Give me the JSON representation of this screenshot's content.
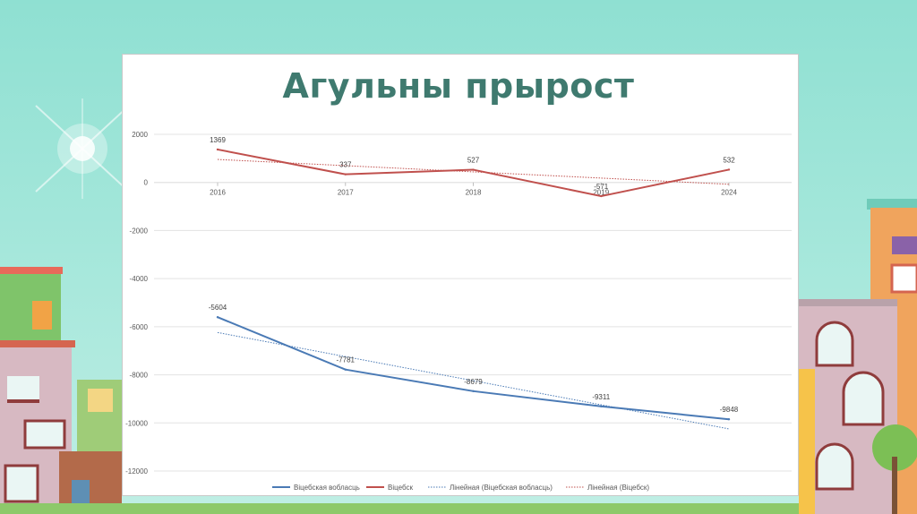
{
  "slide": {
    "title": "Агульны прырост"
  },
  "colors": {
    "sky": "#8fe0d2",
    "title": "#3f7a6f",
    "vitebsk_region": "#4a7ab5",
    "vitebsk": "#c0504d",
    "grid": "#e3e3e3"
  },
  "chart_data": {
    "type": "line",
    "title": "",
    "xlabel": "",
    "ylabel": "",
    "categories": [
      "2016",
      "2017",
      "2018",
      "2019",
      "2024"
    ],
    "ylim": [
      -12000,
      2000
    ],
    "yticks": [
      2000,
      0,
      -2000,
      -4000,
      -6000,
      -8000,
      -10000,
      -12000
    ],
    "grid": true,
    "legend_position": "bottom",
    "series": [
      {
        "name": "Віцебская вобласць",
        "values": [
          -5604,
          -7781,
          -8679,
          -9311,
          -9848
        ],
        "color": "#4a7ab5"
      },
      {
        "name": "Віцебск",
        "values": [
          1369,
          337,
          527,
          -571,
          532
        ],
        "color": "#c0504d"
      }
    ],
    "trendlines": [
      {
        "name": "Лінейная (Віцебская вобласць)",
        "of": "Віцебская вобласць",
        "style": "dotted",
        "color": "#4a7ab5"
      },
      {
        "name": "Лінейная (Віцебск)",
        "of": "Віцебск",
        "style": "dotted",
        "color": "#c0504d"
      }
    ]
  }
}
